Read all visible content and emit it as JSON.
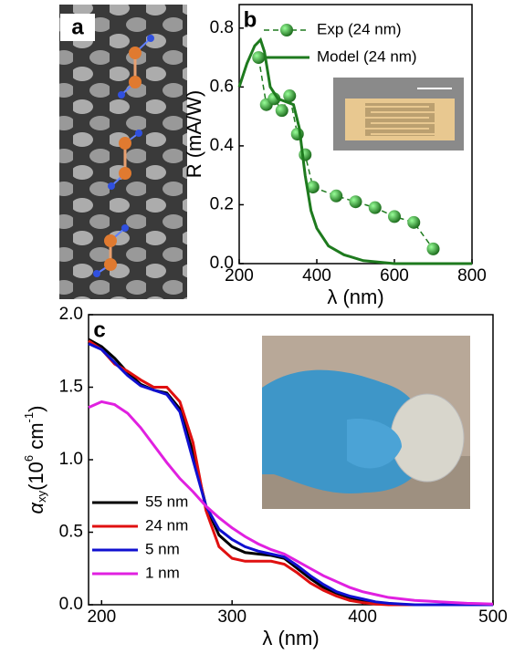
{
  "image_panel": {
    "label": "a"
  },
  "chart_data": [
    {
      "type": "line",
      "panel": "b",
      "xlabel": "λ (nm)",
      "ylabel": "R (mA/W)",
      "xlim": [
        200,
        800
      ],
      "xticks": [
        200,
        400,
        600,
        800
      ],
      "ylim": [
        0,
        0.88
      ],
      "yticks": [
        {
          "value": 0,
          "label": "0.0"
        },
        {
          "value": 0.2,
          "label": "0.2"
        },
        {
          "value": 0.4,
          "label": "0.4"
        },
        {
          "value": 0.6,
          "label": "0.6"
        },
        {
          "value": 0.8,
          "label": "0.8"
        }
      ],
      "legend": "upper right",
      "series": [
        {
          "name": "Exp (24 nm)",
          "color": "#1e7a1e",
          "style": "dashed-markers",
          "x": [
            250,
            270,
            290,
            310,
            330,
            350,
            370,
            390,
            450,
            500,
            550,
            600,
            650,
            700
          ],
          "values": [
            0.7,
            0.54,
            0.56,
            0.52,
            0.57,
            0.44,
            0.37,
            0.26,
            0.23,
            0.21,
            0.19,
            0.16,
            0.14,
            0.05
          ]
        },
        {
          "name": "Model (24 nm)",
          "color": "#1e7a1e",
          "style": "solid",
          "x": [
            200,
            220,
            240,
            255,
            265,
            280,
            300,
            320,
            340,
            355,
            370,
            385,
            400,
            430,
            470,
            520,
            600,
            700,
            800
          ],
          "values": [
            0.6,
            0.68,
            0.74,
            0.76,
            0.72,
            0.6,
            0.56,
            0.55,
            0.54,
            0.46,
            0.3,
            0.18,
            0.12,
            0.06,
            0.03,
            0.01,
            0.0,
            0.0,
            0.0
          ]
        }
      ]
    },
    {
      "type": "line",
      "panel": "c",
      "xlabel": "λ (nm)",
      "ylabel": {
        "symbol": "α",
        "sub": "xy",
        "pre": "(10",
        "sup1": "6",
        "mid": " cm",
        "sup2": "-1",
        "post": ")"
      },
      "xlim": [
        190,
        500
      ],
      "xticks": [
        200,
        300,
        400,
        500
      ],
      "ylim": [
        0,
        2.0
      ],
      "yticks": [
        {
          "value": 0,
          "label": "0.0"
        },
        {
          "value": 0.5,
          "label": "0.5"
        },
        {
          "value": 1.0,
          "label": "1.0"
        },
        {
          "value": 1.5,
          "label": "1.5"
        },
        {
          "value": 2.0,
          "label": "2.0"
        }
      ],
      "legend": "lower left",
      "x": [
        190,
        200,
        210,
        220,
        230,
        240,
        250,
        260,
        270,
        280,
        290,
        300,
        310,
        320,
        330,
        340,
        350,
        360,
        370,
        380,
        390,
        400,
        410,
        420,
        430,
        440,
        450,
        460,
        470,
        480,
        490,
        500
      ],
      "series": [
        {
          "name": "55 nm",
          "color": "#000000",
          "values": [
            1.83,
            1.78,
            1.7,
            1.6,
            1.52,
            1.48,
            1.46,
            1.35,
            1.05,
            0.68,
            0.48,
            0.4,
            0.36,
            0.35,
            0.34,
            0.32,
            0.25,
            0.18,
            0.12,
            0.08,
            0.05,
            0.03,
            0.01,
            0.005,
            0,
            0,
            0,
            0,
            0,
            0,
            0,
            0
          ]
        },
        {
          "name": "24 nm",
          "color": "#e01010",
          "values": [
            1.82,
            1.76,
            1.66,
            1.61,
            1.55,
            1.5,
            1.5,
            1.4,
            1.12,
            0.65,
            0.4,
            0.32,
            0.3,
            0.3,
            0.3,
            0.28,
            0.22,
            0.15,
            0.1,
            0.06,
            0.03,
            0.015,
            0.005,
            0,
            0,
            0,
            0,
            0,
            0,
            0,
            0,
            0
          ]
        },
        {
          "name": "5 nm",
          "color": "#1010d0",
          "values": [
            1.8,
            1.76,
            1.67,
            1.58,
            1.51,
            1.48,
            1.45,
            1.33,
            1.0,
            0.68,
            0.52,
            0.45,
            0.4,
            0.37,
            0.35,
            0.33,
            0.27,
            0.2,
            0.14,
            0.09,
            0.06,
            0.04,
            0.02,
            0.01,
            0.005,
            0,
            0,
            0,
            0,
            0,
            0,
            0
          ]
        },
        {
          "name": "1 nm",
          "color": "#e020e0",
          "values": [
            1.36,
            1.4,
            1.38,
            1.32,
            1.22,
            1.1,
            0.98,
            0.87,
            0.78,
            0.68,
            0.6,
            0.53,
            0.47,
            0.42,
            0.38,
            0.35,
            0.3,
            0.25,
            0.2,
            0.16,
            0.12,
            0.09,
            0.07,
            0.05,
            0.04,
            0.03,
            0.025,
            0.02,
            0.015,
            0.01,
            0.008,
            0.005
          ]
        }
      ]
    }
  ]
}
